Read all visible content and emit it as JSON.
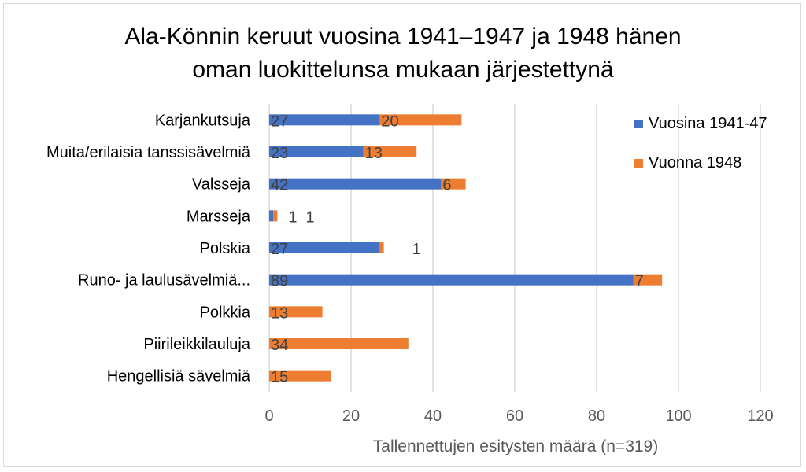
{
  "chart_data": {
    "type": "bar",
    "orientation": "horizontal",
    "stacked": true,
    "title_lines": [
      "Ala-Könnin keruut vuosina 1941–1947 ja 1948 hänen",
      "oman luokittelunsa mukaan järjestettynä"
    ],
    "xlabel": "Tallennettujen esitysten määrä (n=319)",
    "ylabel": "",
    "xlim": [
      0,
      120
    ],
    "xticks": [
      0,
      20,
      40,
      60,
      80,
      100,
      120
    ],
    "grid": true,
    "legend_position": "top-right",
    "categories": [
      "Karjankutsuja",
      "Muita/erilaisia tanssisävelmiä",
      "Valsseja",
      "Marsseja",
      "Polskia",
      "Runo- ja laulusävelmiä...",
      "Polkkia",
      "Piirileikkilauluja",
      "Hengellisiä sävelmiä"
    ],
    "series": [
      {
        "name": "Vuosina 1941-47",
        "color": "#4472C4",
        "values": [
          27,
          23,
          42,
          1,
          27,
          89,
          0,
          0,
          0
        ],
        "labels": [
          "27",
          "23",
          "42",
          "1",
          "27",
          "89",
          "",
          "",
          ""
        ]
      },
      {
        "name": "Vuonna 1948",
        "color": "#ED7D31",
        "values": [
          20,
          13,
          6,
          1,
          1,
          7,
          13,
          34,
          15
        ],
        "labels": [
          "20",
          "13",
          "6",
          "1",
          "1",
          "7",
          "13",
          "34",
          "15"
        ]
      }
    ]
  }
}
